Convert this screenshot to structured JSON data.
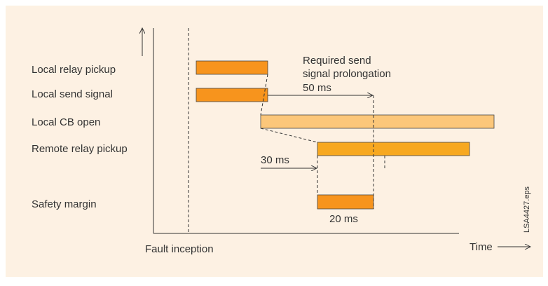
{
  "rows": [
    "Local relay pickup",
    "Local send signal",
    "Local CB open",
    "Remote relay pickup",
    "Safety margin"
  ],
  "annotations": {
    "prolongation_line1": "Required send",
    "prolongation_line2": "signal prolongation",
    "prolongation_time": "50 ms",
    "remote_delay": "30 ms",
    "margin_time": "20 ms"
  },
  "x_axis_label": "Time",
  "event_label": "Fault inception",
  "file_label": "LSA4427.eps"
}
